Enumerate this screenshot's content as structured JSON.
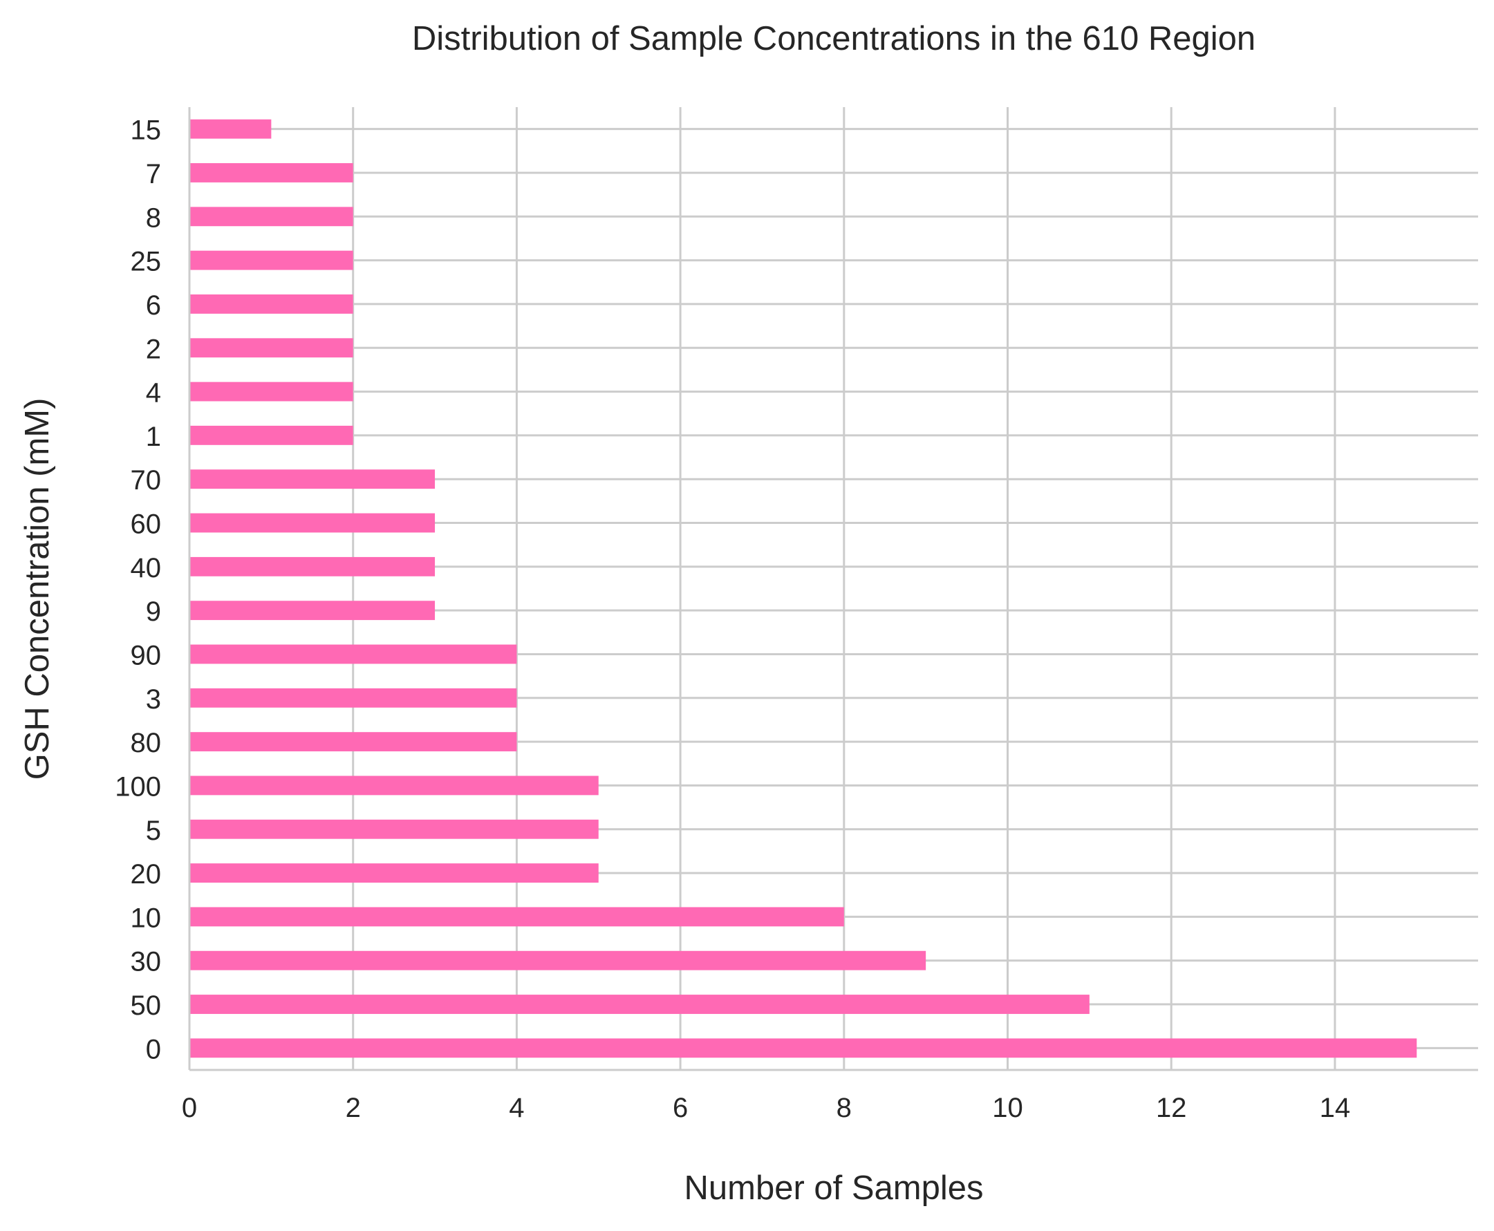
{
  "chart_data": {
    "type": "bar",
    "orientation": "horizontal",
    "title": "Distribution of Sample Concentrations in the 610 Region",
    "xlabel": "Number of Samples",
    "ylabel": "GSH Concentration (mM)",
    "xlim": [
      0,
      15.75
    ],
    "xticks": [
      "0",
      "2",
      "4",
      "6",
      "8",
      "10",
      "12",
      "14"
    ],
    "grid": true,
    "bar_color": "#ff69b4",
    "categories": [
      "0",
      "50",
      "30",
      "10",
      "20",
      "5",
      "100",
      "80",
      "3",
      "90",
      "9",
      "40",
      "60",
      "70",
      "1",
      "4",
      "2",
      "6",
      "25",
      "8",
      "7",
      "15"
    ],
    "values": [
      15,
      11,
      9,
      8,
      5,
      5,
      5,
      4,
      4,
      4,
      3,
      3,
      3,
      3,
      2,
      2,
      2,
      2,
      2,
      2,
      2,
      1
    ]
  }
}
